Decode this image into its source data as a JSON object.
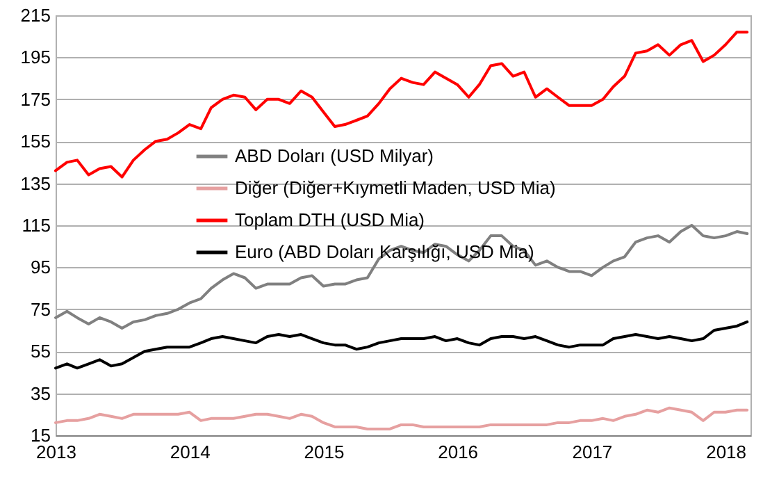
{
  "chart_data": {
    "type": "line",
    "x": [
      "2013-01",
      "2013-02",
      "2013-03",
      "2013-04",
      "2013-05",
      "2013-06",
      "2013-07",
      "2013-08",
      "2013-09",
      "2013-10",
      "2013-11",
      "2013-12",
      "2014-01",
      "2014-02",
      "2014-03",
      "2014-04",
      "2014-05",
      "2014-06",
      "2014-07",
      "2014-08",
      "2014-09",
      "2014-10",
      "2014-11",
      "2014-12",
      "2015-01",
      "2015-02",
      "2015-03",
      "2015-04",
      "2015-05",
      "2015-06",
      "2015-07",
      "2015-08",
      "2015-09",
      "2015-10",
      "2015-11",
      "2015-12",
      "2016-01",
      "2016-02",
      "2016-03",
      "2016-04",
      "2016-05",
      "2016-06",
      "2016-07",
      "2016-08",
      "2016-09",
      "2016-10",
      "2016-11",
      "2016-12",
      "2017-01",
      "2017-02",
      "2017-03",
      "2017-04",
      "2017-05",
      "2017-06",
      "2017-07",
      "2017-08",
      "2017-09",
      "2017-10",
      "2017-11",
      "2017-12",
      "2018-01",
      "2018-02",
      "2018-03"
    ],
    "series": [
      {
        "name": "ABD Doları (USD Milyar)",
        "color": "#808080",
        "values": [
          71,
          74,
          71,
          68,
          71,
          69,
          66,
          69,
          70,
          72,
          73,
          75,
          78,
          80,
          85,
          89,
          92,
          90,
          85,
          87,
          87,
          87,
          90,
          91,
          86,
          87,
          87,
          89,
          90,
          99,
          103,
          105,
          103,
          102,
          106,
          105,
          101,
          98,
          103,
          110,
          110,
          105,
          103,
          96,
          98,
          95,
          93,
          93,
          91,
          95,
          98,
          100,
          107,
          109,
          110,
          107,
          112,
          115,
          110,
          109,
          110,
          112,
          111
        ]
      },
      {
        "name": "Diğer (Diğer+Kıymetli Maden, USD Mia)",
        "color": "#e6a0a0",
        "values": [
          21,
          22,
          22,
          23,
          25,
          24,
          23,
          25,
          25,
          25,
          25,
          25,
          26,
          22,
          23,
          23,
          23,
          24,
          25,
          25,
          24,
          23,
          25,
          24,
          21,
          19,
          19,
          19,
          18,
          18,
          18,
          20,
          20,
          19,
          19,
          19,
          19,
          19,
          19,
          20,
          20,
          20,
          20,
          20,
          20,
          21,
          21,
          22,
          22,
          23,
          22,
          24,
          25,
          27,
          26,
          28,
          27,
          26,
          22,
          26,
          26,
          27,
          27
        ]
      },
      {
        "name": "Toplam DTH (USD Mia)",
        "color": "#ff0000",
        "values": [
          141,
          145,
          146,
          139,
          142,
          143,
          138,
          146,
          151,
          155,
          156,
          159,
          163,
          161,
          171,
          175,
          177,
          176,
          170,
          175,
          175,
          173,
          179,
          176,
          169,
          162,
          163,
          165,
          167,
          173,
          180,
          185,
          183,
          182,
          188,
          185,
          182,
          176,
          182,
          191,
          192,
          186,
          188,
          176,
          180,
          176,
          172,
          172,
          172,
          175,
          181,
          186,
          197,
          198,
          201,
          196,
          201,
          203,
          193,
          196,
          201,
          207,
          207
        ]
      },
      {
        "name": "Euro (ABD Doları Karşılığı, USD Mia)",
        "color": "#000000",
        "values": [
          47,
          49,
          47,
          49,
          51,
          48,
          49,
          52,
          55,
          56,
          57,
          57,
          57,
          59,
          61,
          62,
          61,
          60,
          59,
          62,
          63,
          62,
          63,
          61,
          59,
          58,
          58,
          56,
          57,
          59,
          60,
          61,
          61,
          61,
          62,
          60,
          61,
          59,
          58,
          61,
          62,
          62,
          61,
          62,
          60,
          58,
          57,
          58,
          58,
          58,
          61,
          62,
          63,
          62,
          61,
          62,
          61,
          60,
          61,
          65,
          66,
          67,
          69
        ]
      }
    ],
    "xlim": [
      "2013-01-01",
      "2018-03-10"
    ],
    "xticks": [
      "2013",
      "2014",
      "2015",
      "2016",
      "2017",
      "2018"
    ],
    "ylim": [
      15,
      215
    ],
    "yticks": [
      15,
      35,
      55,
      75,
      95,
      115,
      135,
      155,
      175,
      195,
      215
    ],
    "grid": "y",
    "legend": "left"
  }
}
